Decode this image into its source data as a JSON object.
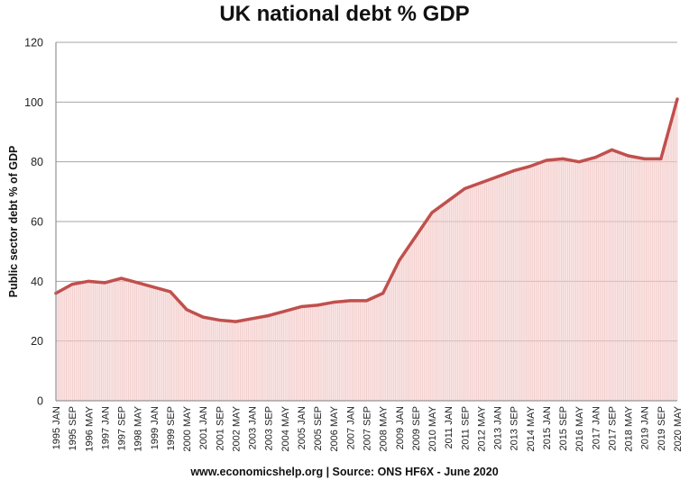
{
  "chart_data": {
    "type": "area",
    "title": "UK national debt % GDP",
    "ylabel": "Public sector debt % of GDP",
    "xlabel": "",
    "footer": "www.economicshelp.org | Source: ONS HF6X - June 2020",
    "ylim": [
      0,
      120
    ],
    "y_ticks": [
      "0",
      "20",
      "40",
      "60",
      "80",
      "100",
      "120"
    ],
    "grid": "horizontal",
    "colors": {
      "line": "#c0504d",
      "fill": "#f2c9c8",
      "grid": "#a6a6a6",
      "axis": "#7f7f7f"
    },
    "x_tick_labels": [
      "1995 JAN",
      "1995 SEP",
      "1996 MAY",
      "1997 JAN",
      "1997 SEP",
      "1998 MAY",
      "1999 JAN",
      "1999 SEP",
      "2000 MAY",
      "2001 JAN",
      "2001 SEP",
      "2002 MAY",
      "2003 JAN",
      "2003 SEP",
      "2004 MAY",
      "2005 JAN",
      "2005 SEP",
      "2006 MAY",
      "2007 JAN",
      "2007 SEP",
      "2008 MAY",
      "2009 JAN",
      "2009 SEP",
      "2010 MAY",
      "2011 JAN",
      "2011 SEP",
      "2012 MAY",
      "2013 JAN",
      "2013 SEP",
      "2014 MAY",
      "2015 JAN",
      "2015 SEP",
      "2016 MAY",
      "2017 JAN",
      "2017 SEP",
      "2018 MAY",
      "2019 JAN",
      "2019 SEP",
      "2020 MAY"
    ],
    "series": [
      {
        "name": "",
        "x": [
          "1995 JAN",
          "1995 SEP",
          "1996 MAY",
          "1997 JAN",
          "1997 SEP",
          "1998 MAY",
          "1999 JAN",
          "1999 SEP",
          "2000 MAY",
          "2001 JAN",
          "2001 SEP",
          "2002 MAY",
          "2003 JAN",
          "2003 SEP",
          "2004 MAY",
          "2005 JAN",
          "2005 SEP",
          "2006 MAY",
          "2007 JAN",
          "2007 SEP",
          "2008 MAY",
          "2009 JAN",
          "2009 SEP",
          "2010 MAY",
          "2011 JAN",
          "2011 SEP",
          "2012 MAY",
          "2013 JAN",
          "2013 SEP",
          "2014 MAY",
          "2015 JAN",
          "2015 SEP",
          "2016 MAY",
          "2017 JAN",
          "2017 SEP",
          "2018 MAY",
          "2019 JAN",
          "2019 SEP",
          "2020 MAY"
        ],
        "values": [
          36,
          39,
          40,
          39.5,
          41,
          39.5,
          38,
          36.5,
          30.5,
          28,
          27,
          26.5,
          27.5,
          28.5,
          30,
          31.5,
          32,
          33,
          33.5,
          33.5,
          36,
          47,
          55,
          63,
          67,
          71,
          73,
          75,
          77,
          78.5,
          80.5,
          81,
          80,
          81.5,
          84,
          82,
          81,
          81,
          101
        ]
      }
    ]
  }
}
